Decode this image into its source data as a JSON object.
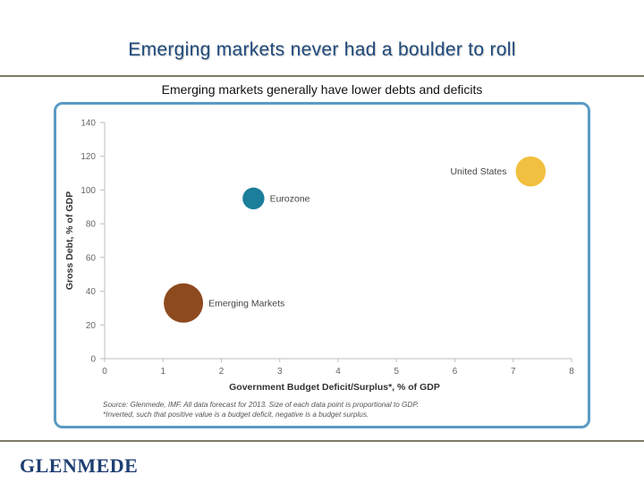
{
  "header": {
    "title": "Emerging markets never had a boulder to roll",
    "subtitle": "Emerging markets generally have lower debts and deficits"
  },
  "footer": {
    "logo_text": "GLENMEDE"
  },
  "colors": {
    "accent": "#1f4a7c",
    "panel_border": "#5a9bc4",
    "rule": "#7d7a66"
  },
  "chart_data": {
    "type": "scatter",
    "xlabel": "Government Budget Deficit/Surplus*, % of GDP",
    "ylabel": "Gross Debt, % of GDP",
    "xlim": [
      0,
      8
    ],
    "ylim": [
      0,
      140
    ],
    "xticks": [
      "0",
      "1",
      "2",
      "3",
      "4",
      "5",
      "6",
      "7",
      "8"
    ],
    "yticks": [
      "0",
      "20",
      "40",
      "60",
      "80",
      "100",
      "120",
      "140"
    ],
    "grid": false,
    "points": [
      {
        "label": "United States",
        "x": 7.3,
        "y": 111,
        "size": 16.8,
        "color": "#f2c040"
      },
      {
        "label": "Eurozone",
        "x": 2.55,
        "y": 95,
        "size": 12.2,
        "color": "#1b7e9a"
      },
      {
        "label": "Emerging Markets",
        "x": 1.35,
        "y": 33,
        "size": 22.0,
        "color": "#8e4a1f"
      }
    ],
    "source_note": "Source: Glenmede, IMF. All data forecast for 2013. Size of each data point is proportional to GDP.",
    "footnote": "*Inverted, such that positive value is a budget deficit, negative is a budget surplus."
  }
}
